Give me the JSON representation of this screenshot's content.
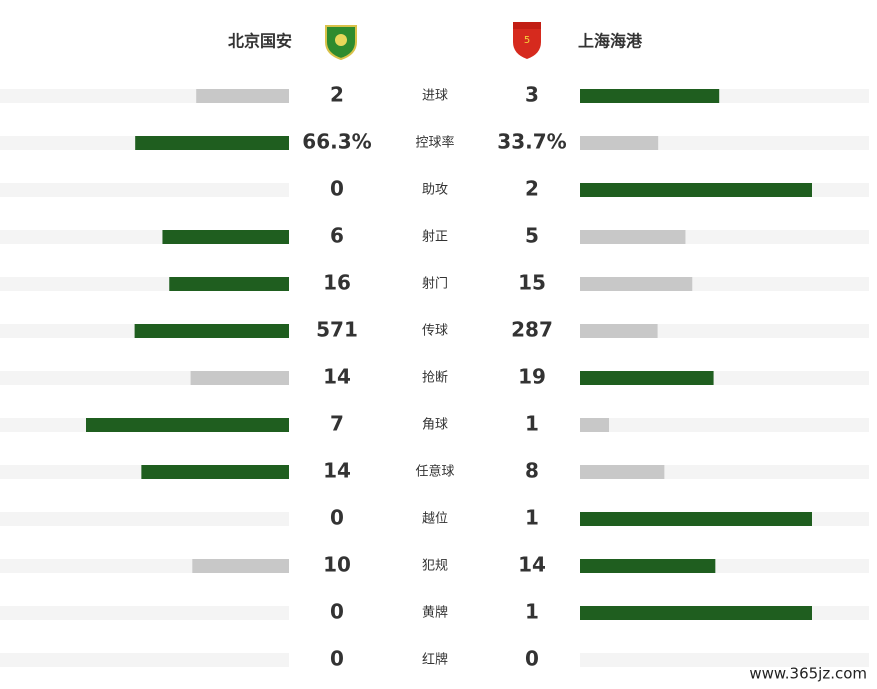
{
  "header": {
    "home_team": "北京国安",
    "away_team": "上海海港"
  },
  "stats": [
    {
      "label": "进球",
      "home": 2,
      "away": 3
    },
    {
      "label": "控球率",
      "home": 66.3,
      "away": 33.7,
      "home_label": "66.3%",
      "away_label": "33.7%"
    },
    {
      "label": "助攻",
      "home": 0,
      "away": 2
    },
    {
      "label": "射正",
      "home": 6,
      "away": 5
    },
    {
      "label": "射门",
      "home": 16,
      "away": 15
    },
    {
      "label": "传球",
      "home": 571,
      "away": 287
    },
    {
      "label": "抢断",
      "home": 14,
      "away": 19
    },
    {
      "label": "角球",
      "home": 7,
      "away": 1
    },
    {
      "label": "任意球",
      "home": 14,
      "away": 8
    },
    {
      "label": "越位",
      "home": 0,
      "away": 1
    },
    {
      "label": "犯规",
      "home": 10,
      "away": 14
    },
    {
      "label": "黄牌",
      "home": 0,
      "away": 1
    },
    {
      "label": "红牌",
      "home": 0,
      "away": 0
    }
  ],
  "colors": {
    "leader": "#1f5e1f",
    "other": "#c8c8c8"
  },
  "watermark": "www.365jz.com"
}
